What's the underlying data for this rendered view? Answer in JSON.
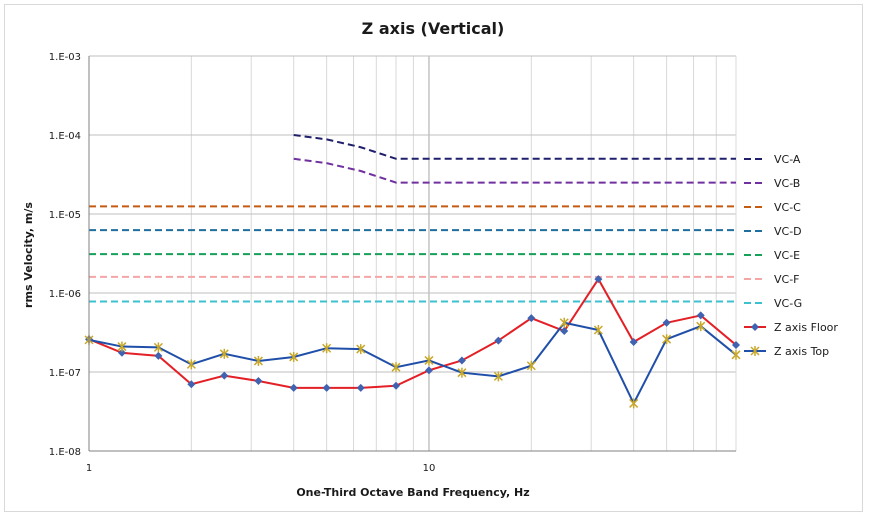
{
  "chart_data": {
    "type": "line",
    "title": "Z axis (Vertical)",
    "xlabel": "One-Third Octave Band Frequency, Hz",
    "ylabel": "rms Velocity, m/s",
    "x_scale": "log",
    "y_scale": "log",
    "xlim": [
      1,
      80
    ],
    "ylim": [
      1e-08,
      0.001
    ],
    "x_ticks": [
      {
        "value": 1,
        "label": "1"
      },
      {
        "value": 10,
        "label": "10"
      }
    ],
    "y_ticks": [
      {
        "value": 0.001,
        "label": "1.E-03"
      },
      {
        "value": 0.0001,
        "label": "1.E-04"
      },
      {
        "value": 1e-05,
        "label": "1.E-05"
      },
      {
        "value": 1e-06,
        "label": "1.E-06"
      },
      {
        "value": 1e-07,
        "label": "1.E-07"
      },
      {
        "value": 1e-08,
        "label": "1.E-08"
      }
    ],
    "grid": true,
    "legend_position": "right",
    "reference_curves": [
      {
        "name": "VC-A",
        "color": "#1f1f6b",
        "x": [
          4,
          5,
          6.3,
          8,
          10,
          80
        ],
        "y": [
          0.0001,
          8.8e-05,
          7e-05,
          5e-05,
          5e-05,
          5e-05
        ]
      },
      {
        "name": "VC-B",
        "color": "#7030a0",
        "x": [
          4,
          5,
          6.3,
          8,
          10,
          80
        ],
        "y": [
          5e-05,
          4.4e-05,
          3.5e-05,
          2.5e-05,
          2.5e-05,
          2.5e-05
        ]
      },
      {
        "name": "VC-C",
        "color": "#c55a11",
        "x": [
          1,
          80
        ],
        "y": [
          1.25e-05,
          1.25e-05
        ]
      },
      {
        "name": "VC-D",
        "color": "#1f6e9e",
        "x": [
          1,
          80
        ],
        "y": [
          6.25e-06,
          6.25e-06
        ]
      },
      {
        "name": "VC-E",
        "color": "#16a05a",
        "x": [
          1,
          80
        ],
        "y": [
          3.1e-06,
          3.1e-06
        ]
      },
      {
        "name": "VC-F",
        "color": "#f4a6a6",
        "x": [
          1,
          80
        ],
        "y": [
          1.6e-06,
          1.6e-06
        ]
      },
      {
        "name": "VC-G",
        "color": "#3bc1cf",
        "x": [
          1,
          80
        ],
        "y": [
          7.8e-07,
          7.8e-07
        ]
      }
    ],
    "x": [
      1,
      1.25,
      1.6,
      2,
      2.5,
      3.15,
      4,
      5,
      6.3,
      8,
      10,
      12.5,
      16,
      20,
      25,
      31.5,
      40,
      50,
      63,
      80
    ],
    "series": [
      {
        "name": "Z axis Floor",
        "color": "#e32026",
        "marker": "diamond",
        "marker_color": "#3f63b0",
        "values": [
          2.6e-07,
          1.75e-07,
          1.6e-07,
          7e-08,
          9e-08,
          7.7e-08,
          6.3e-08,
          6.3e-08,
          6.3e-08,
          6.7e-08,
          1.05e-07,
          1.4e-07,
          2.5e-07,
          4.8e-07,
          3.3e-07,
          1.5e-06,
          2.4e-07,
          4.2e-07,
          5.2e-07,
          2.2e-07
        ]
      },
      {
        "name": "Z axis Top",
        "color": "#1f4fa8",
        "marker": "star",
        "marker_color": "#c8a82a",
        "values": [
          2.55e-07,
          2.1e-07,
          2.05e-07,
          1.25e-07,
          1.7e-07,
          1.38e-07,
          1.55e-07,
          2e-07,
          1.95e-07,
          1.15e-07,
          1.4e-07,
          9.8e-08,
          8.8e-08,
          1.2e-07,
          4.2e-07,
          3.4e-07,
          4e-08,
          2.6e-07,
          3.8e-07,
          1.65e-07
        ]
      }
    ]
  }
}
